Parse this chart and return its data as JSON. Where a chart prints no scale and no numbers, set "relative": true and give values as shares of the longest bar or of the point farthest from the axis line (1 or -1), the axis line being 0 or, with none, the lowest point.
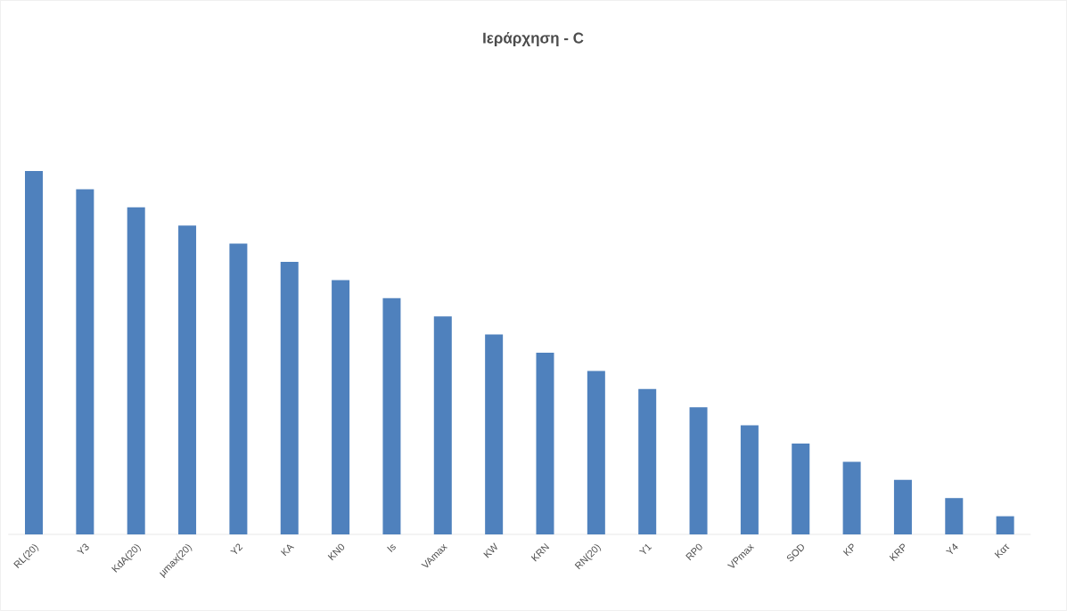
{
  "chart_data": {
    "type": "bar",
    "title": "Ιεράρχηση - C",
    "relative": true,
    "color": "#4f81bd",
    "categories": [
      "RL(20)",
      "Y3",
      "KdA(20)",
      "μmax(20)",
      "Y2",
      "KA",
      "KN0",
      "Is",
      "VAmax",
      "KW",
      "KRN",
      "RN(20)",
      "Y1",
      "RP0",
      "VPmax",
      "SOD",
      "KP",
      "KRP",
      "Y4",
      "Κατ"
    ],
    "values": [
      1,
      0.95,
      0.9,
      0.85,
      0.8,
      0.75,
      0.7,
      0.65,
      0.6,
      0.55,
      0.5,
      0.45,
      0.4,
      0.35,
      0.3,
      0.25,
      0.2,
      0.15,
      0.1,
      0.05
    ]
  }
}
